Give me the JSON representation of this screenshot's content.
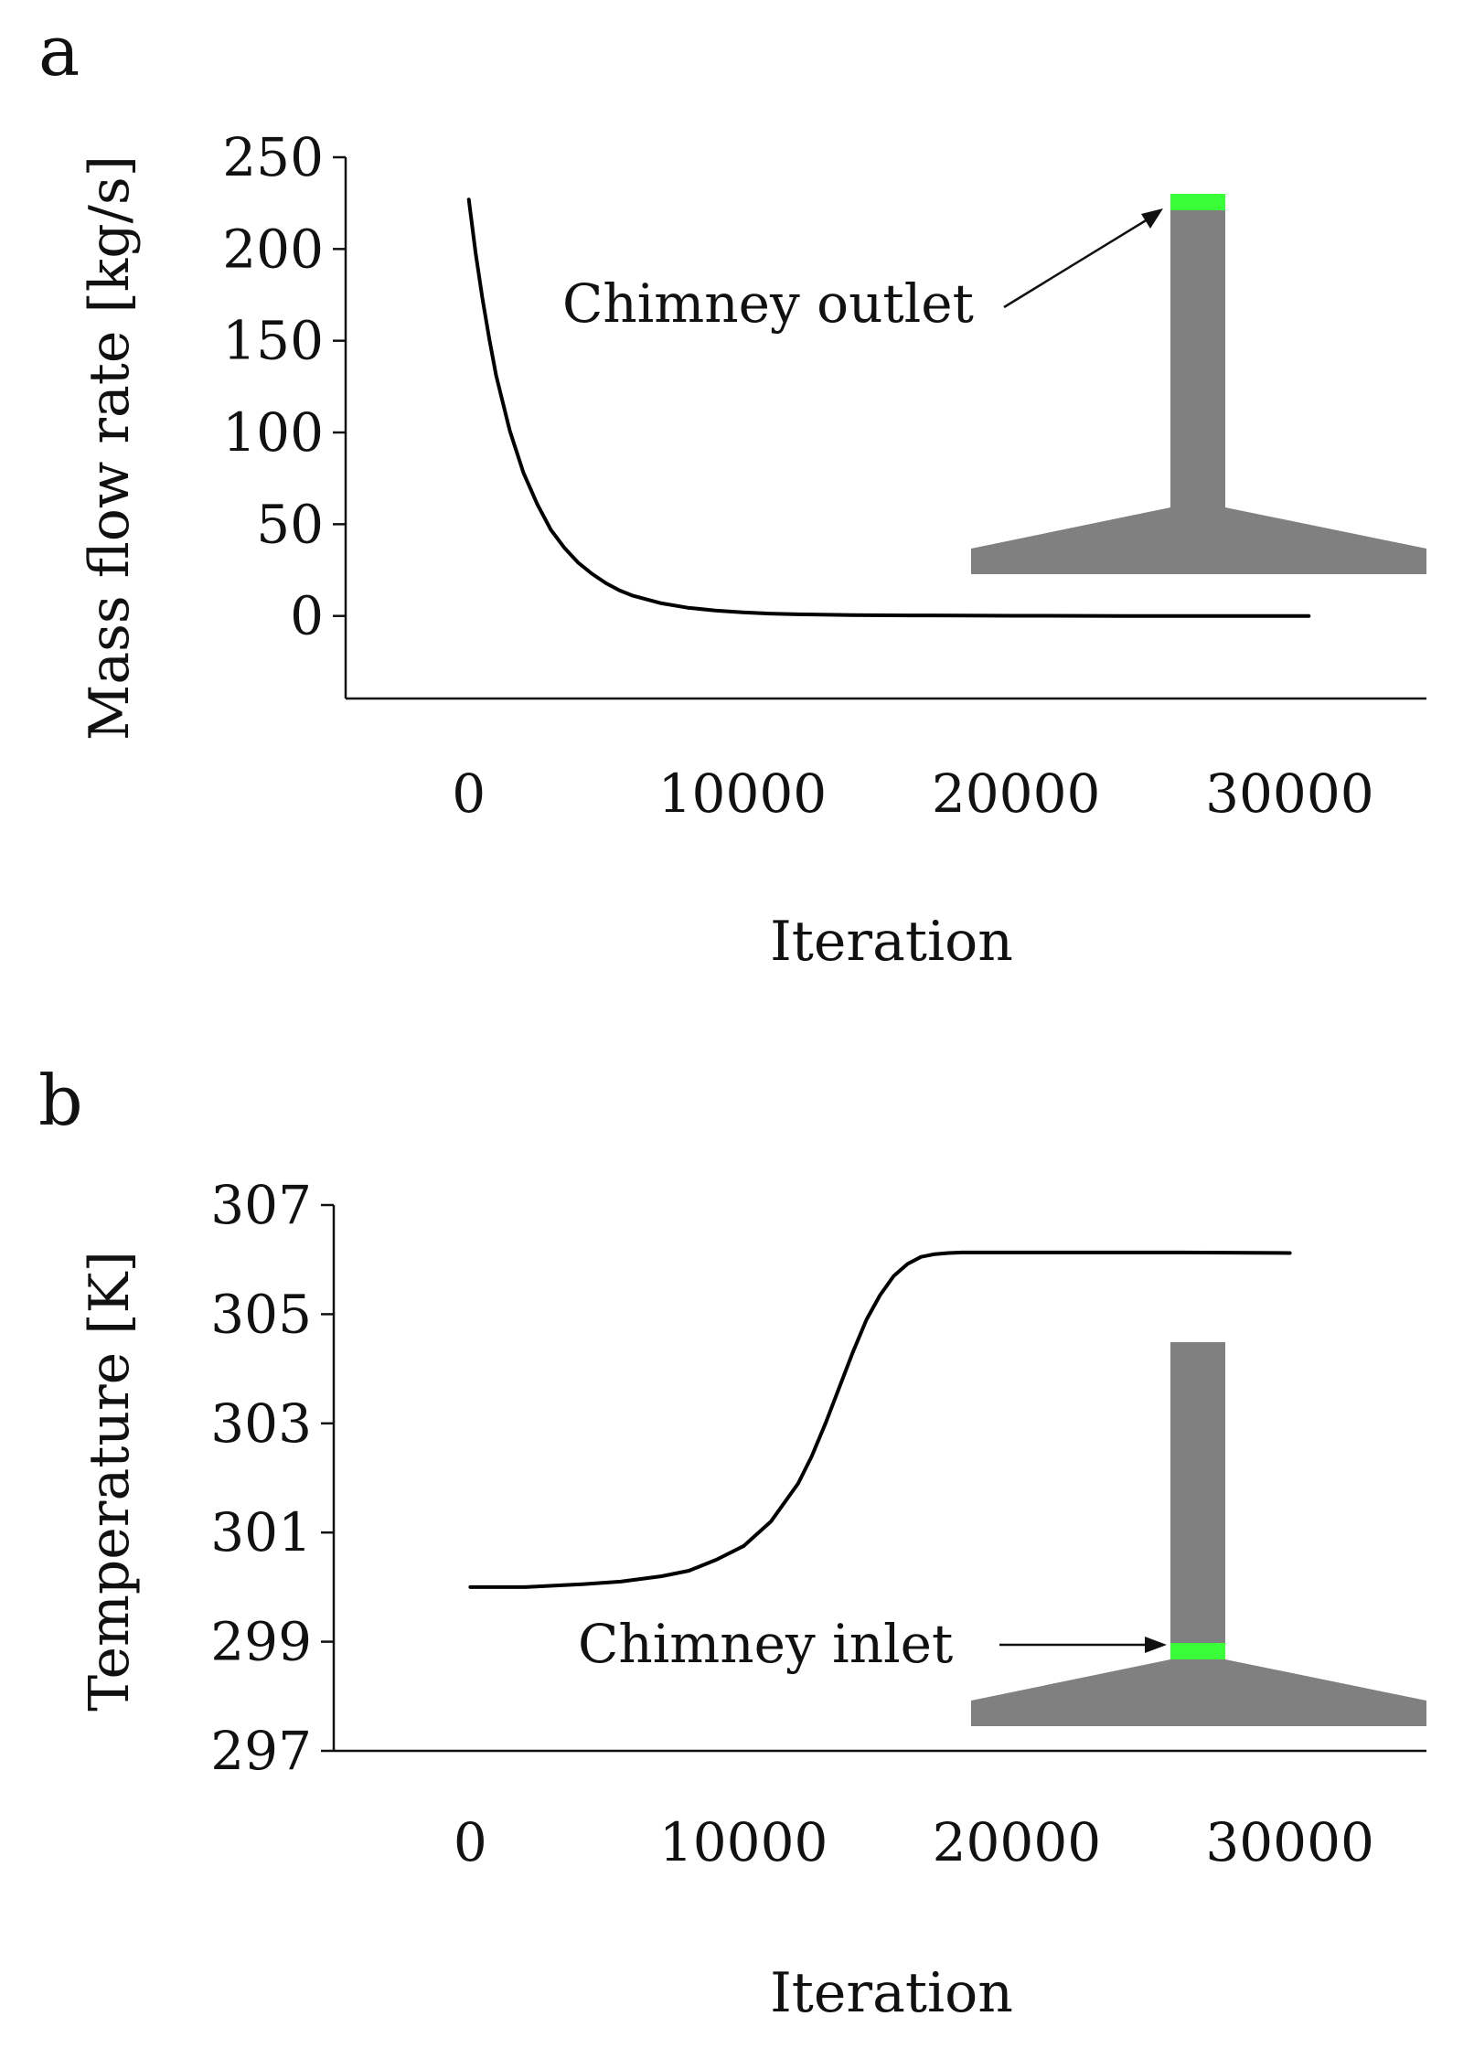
{
  "colors": {
    "axis": "#111111",
    "line": "#000000",
    "chimney": "#808080",
    "highlight": "#39ff39"
  },
  "chart_data": [
    {
      "type": "line",
      "panel": "a",
      "xlabel": "Iteration",
      "ylabel": "Mass flow rate [kg/s]",
      "xlim": [
        -4500,
        35000
      ],
      "ylim": [
        -45,
        250
      ],
      "xticks": [
        0,
        10000,
        20000,
        30000
      ],
      "xtick_labels": [
        "0",
        "10000",
        "20000",
        "30000"
      ],
      "yticks": [
        0,
        50,
        100,
        150,
        200,
        250
      ],
      "ytick_labels": [
        "0",
        "50",
        "100",
        "150",
        "200",
        "250"
      ],
      "series": [
        {
          "name": "Mass flow rate",
          "x": [
            0,
            250,
            500,
            750,
            1000,
            1500,
            2000,
            2500,
            3000,
            3500,
            4000,
            4500,
            5000,
            5500,
            6000,
            7000,
            8000,
            9000,
            10000,
            11000,
            12000,
            14000,
            16000,
            18000,
            20000,
            24000,
            28000,
            30700
          ],
          "y": [
            227,
            198,
            173,
            151,
            131,
            101,
            78,
            61,
            47,
            37,
            29,
            23,
            18,
            14,
            11,
            7,
            4.5,
            3,
            2,
            1.3,
            0.9,
            0.5,
            0.3,
            0.2,
            0.1,
            0,
            0,
            0
          ]
        }
      ],
      "annotation": {
        "text": "Chimney outlet",
        "marks": "outlet"
      }
    },
    {
      "type": "line",
      "panel": "b",
      "xlabel": "Iteration",
      "ylabel": "Temperature [K]",
      "xlim": [
        -5000,
        35000
      ],
      "ylim": [
        297,
        307
      ],
      "xticks": [
        0,
        10000,
        20000,
        30000
      ],
      "xtick_labels": [
        "0",
        "10000",
        "20000",
        "30000"
      ],
      "yticks": [
        297,
        299,
        301,
        303,
        305,
        307
      ],
      "ytick_labels": [
        "297",
        "299",
        "301",
        "303",
        "305",
        "307"
      ],
      "series": [
        {
          "name": "Temperature",
          "x": [
            0,
            2000,
            4000,
            5500,
            7000,
            8000,
            9000,
            10000,
            11000,
            12000,
            12500,
            13000,
            13500,
            14000,
            14500,
            15000,
            15500,
            16000,
            16500,
            17000,
            17500,
            18000,
            19000,
            20000,
            22000,
            26000,
            30000
          ],
          "y": [
            300.0,
            300.0,
            300.05,
            300.1,
            300.2,
            300.3,
            300.5,
            300.75,
            301.2,
            301.9,
            302.4,
            303.0,
            303.65,
            304.3,
            304.9,
            305.35,
            305.7,
            305.92,
            306.05,
            306.1,
            306.12,
            306.13,
            306.13,
            306.13,
            306.13,
            306.13,
            306.12
          ]
        }
      ],
      "annotation": {
        "text": "Chimney inlet",
        "marks": "inlet"
      }
    }
  ]
}
